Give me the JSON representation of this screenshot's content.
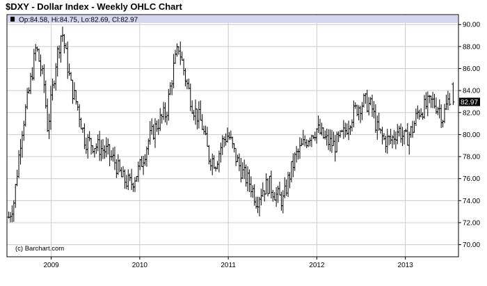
{
  "title": "$DXY - Dollar Index - Weekly OHLC Chart",
  "ohlc_readout": "Op:84.58, Hi:84.75, Lo:82.69, Cl:82.97",
  "credit": "(c) Barchart.com",
  "last_price_label": "82.97",
  "colors": {
    "bars": "#000000",
    "header_band": "#d6d6f0",
    "grid": "#cccccc",
    "frame": "#000000",
    "last_price_badge": "#000000"
  },
  "chart_data": {
    "type": "ohlc",
    "title": "$DXY - Dollar Index - Weekly OHLC Chart",
    "xlabel": "",
    "ylabel": "",
    "ylim": [
      68.9,
      90.9
    ],
    "xlim": [
      2008.5,
      2013.6
    ],
    "y_ticks": [
      "70.00",
      "72.00",
      "74.00",
      "76.00",
      "78.00",
      "80.00",
      "82.00",
      "84.00",
      "86.00",
      "88.00",
      "90.00"
    ],
    "x_ticks": [
      {
        "label": "2009",
        "x": 2009.0
      },
      {
        "label": "2010",
        "x": 2010.0
      },
      {
        "label": "2011",
        "x": 2011.0
      },
      {
        "label": "2012",
        "x": 2012.0
      },
      {
        "label": "2013",
        "x": 2013.0
      }
    ],
    "grid": true,
    "last_value": 82.97,
    "closing_path": [
      [
        2008.52,
        72.5
      ],
      [
        2008.58,
        74.0
      ],
      [
        2008.66,
        80.0
      ],
      [
        2008.75,
        84.0
      ],
      [
        2008.83,
        88.0
      ],
      [
        2008.92,
        84.5
      ],
      [
        2008.96,
        80.5
      ],
      [
        2009.05,
        86.5
      ],
      [
        2009.12,
        89.5
      ],
      [
        2009.22,
        84.5
      ],
      [
        2009.3,
        82.5
      ],
      [
        2009.38,
        79.5
      ],
      [
        2009.5,
        79.0
      ],
      [
        2009.62,
        78.5
      ],
      [
        2009.72,
        77.5
      ],
      [
        2009.8,
        76.0
      ],
      [
        2009.9,
        75.5
      ],
      [
        2010.0,
        77.0
      ],
      [
        2010.1,
        79.5
      ],
      [
        2010.2,
        81.0
      ],
      [
        2010.3,
        82.0
      ],
      [
        2010.38,
        86.0
      ],
      [
        2010.44,
        88.0
      ],
      [
        2010.52,
        85.0
      ],
      [
        2010.6,
        82.5
      ],
      [
        2010.7,
        81.0
      ],
      [
        2010.78,
        78.0
      ],
      [
        2010.86,
        77.5
      ],
      [
        2010.94,
        79.5
      ],
      [
        2011.0,
        80.0
      ],
      [
        2011.08,
        78.0
      ],
      [
        2011.16,
        76.5
      ],
      [
        2011.25,
        75.5
      ],
      [
        2011.32,
        74.0
      ],
      [
        2011.38,
        75.0
      ],
      [
        2011.46,
        75.5
      ],
      [
        2011.54,
        74.5
      ],
      [
        2011.62,
        74.0
      ],
      [
        2011.68,
        76.0
      ],
      [
        2011.76,
        78.0
      ],
      [
        2011.84,
        79.0
      ],
      [
        2011.92,
        80.0
      ],
      [
        2012.0,
        80.5
      ],
      [
        2012.1,
        79.5
      ],
      [
        2012.2,
        79.0
      ],
      [
        2012.3,
        80.0
      ],
      [
        2012.38,
        81.5
      ],
      [
        2012.46,
        82.5
      ],
      [
        2012.54,
        83.0
      ],
      [
        2012.62,
        82.5
      ],
      [
        2012.68,
        80.5
      ],
      [
        2012.76,
        79.5
      ],
      [
        2012.84,
        79.5
      ],
      [
        2012.92,
        80.5
      ],
      [
        2013.0,
        79.5
      ],
      [
        2013.08,
        80.5
      ],
      [
        2013.14,
        82.0
      ],
      [
        2013.22,
        82.5
      ],
      [
        2013.3,
        83.0
      ],
      [
        2013.38,
        82.5
      ],
      [
        2013.42,
        81.5
      ],
      [
        2013.46,
        82.5
      ],
      [
        2013.5,
        83.5
      ],
      [
        2013.54,
        83.5
      ]
    ],
    "last_bar": {
      "open": 84.58,
      "high": 84.75,
      "low": 82.69,
      "close": 82.97
    }
  }
}
